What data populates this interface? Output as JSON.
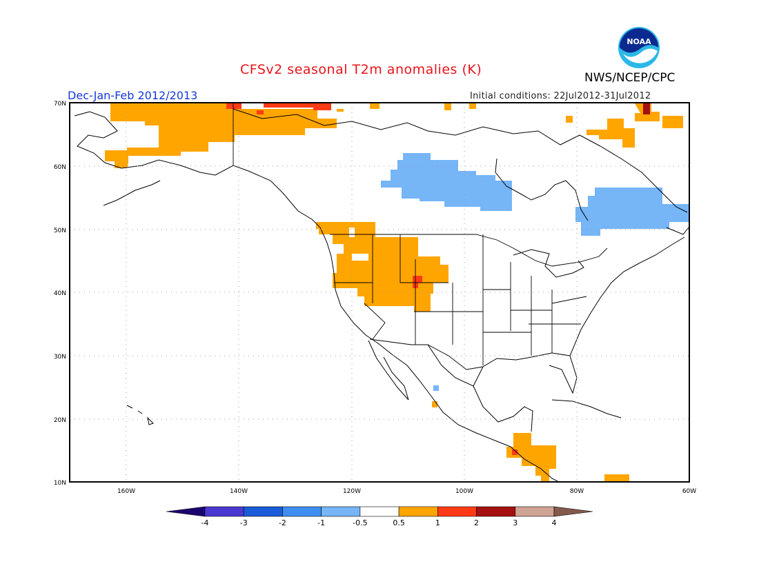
{
  "header": {
    "title": "CFSv2 seasonal T2m anomalies (K)",
    "period": "Dec-Jan-Feb 2012/2013",
    "initial_conditions": "Initial conditions: 22Jul2012-31Jul2012",
    "agency": "NWS/NCEP/CPC",
    "logo_text": "NOAA",
    "logo_icon": "noaa-logo-icon"
  },
  "map": {
    "lon_range": [
      -172,
      -60
    ],
    "lat_range": [
      10,
      70
    ],
    "lat_labels": [
      "70N",
      "60N",
      "50N",
      "40N",
      "30N",
      "20N",
      "10N"
    ],
    "lon_labels": [
      "160W",
      "140W",
      "120W",
      "100W",
      "80W",
      "60W"
    ],
    "gridlines": "dotted"
  },
  "colorbar": {
    "labels": [
      "-4",
      "-3",
      "-2",
      "-1",
      "-0.5",
      "0.5",
      "1",
      "2",
      "3",
      "4"
    ],
    "colors": [
      "#1c0470",
      "#4b38d1",
      "#1a5bd8",
      "#3f8ef2",
      "#76b5f6",
      "#ffffff",
      "#ffa500",
      "#ff3a14",
      "#a51010",
      "#cfa394",
      "#845a4d"
    ]
  },
  "regions": [
    {
      "name": "alaska-warm",
      "category": "0.5 to 1"
    },
    {
      "name": "northern-canada-warm",
      "category": "0.5 to 1"
    },
    {
      "name": "arctic-coast-strong-warm",
      "category": "1 to 2"
    },
    {
      "name": "central-canada-cool",
      "category": "-1 to -0.5"
    },
    {
      "name": "quebec-labrador-cool",
      "category": "-1 to -0.5"
    },
    {
      "name": "northwest-us-warm",
      "category": "0.5 to 1"
    },
    {
      "name": "colorado-strong-warm",
      "category": "1 to 2"
    },
    {
      "name": "central-america-warm",
      "category": "0.5 to 1"
    },
    {
      "name": "greenland-strong-warm",
      "category": "1 to 2"
    }
  ]
}
